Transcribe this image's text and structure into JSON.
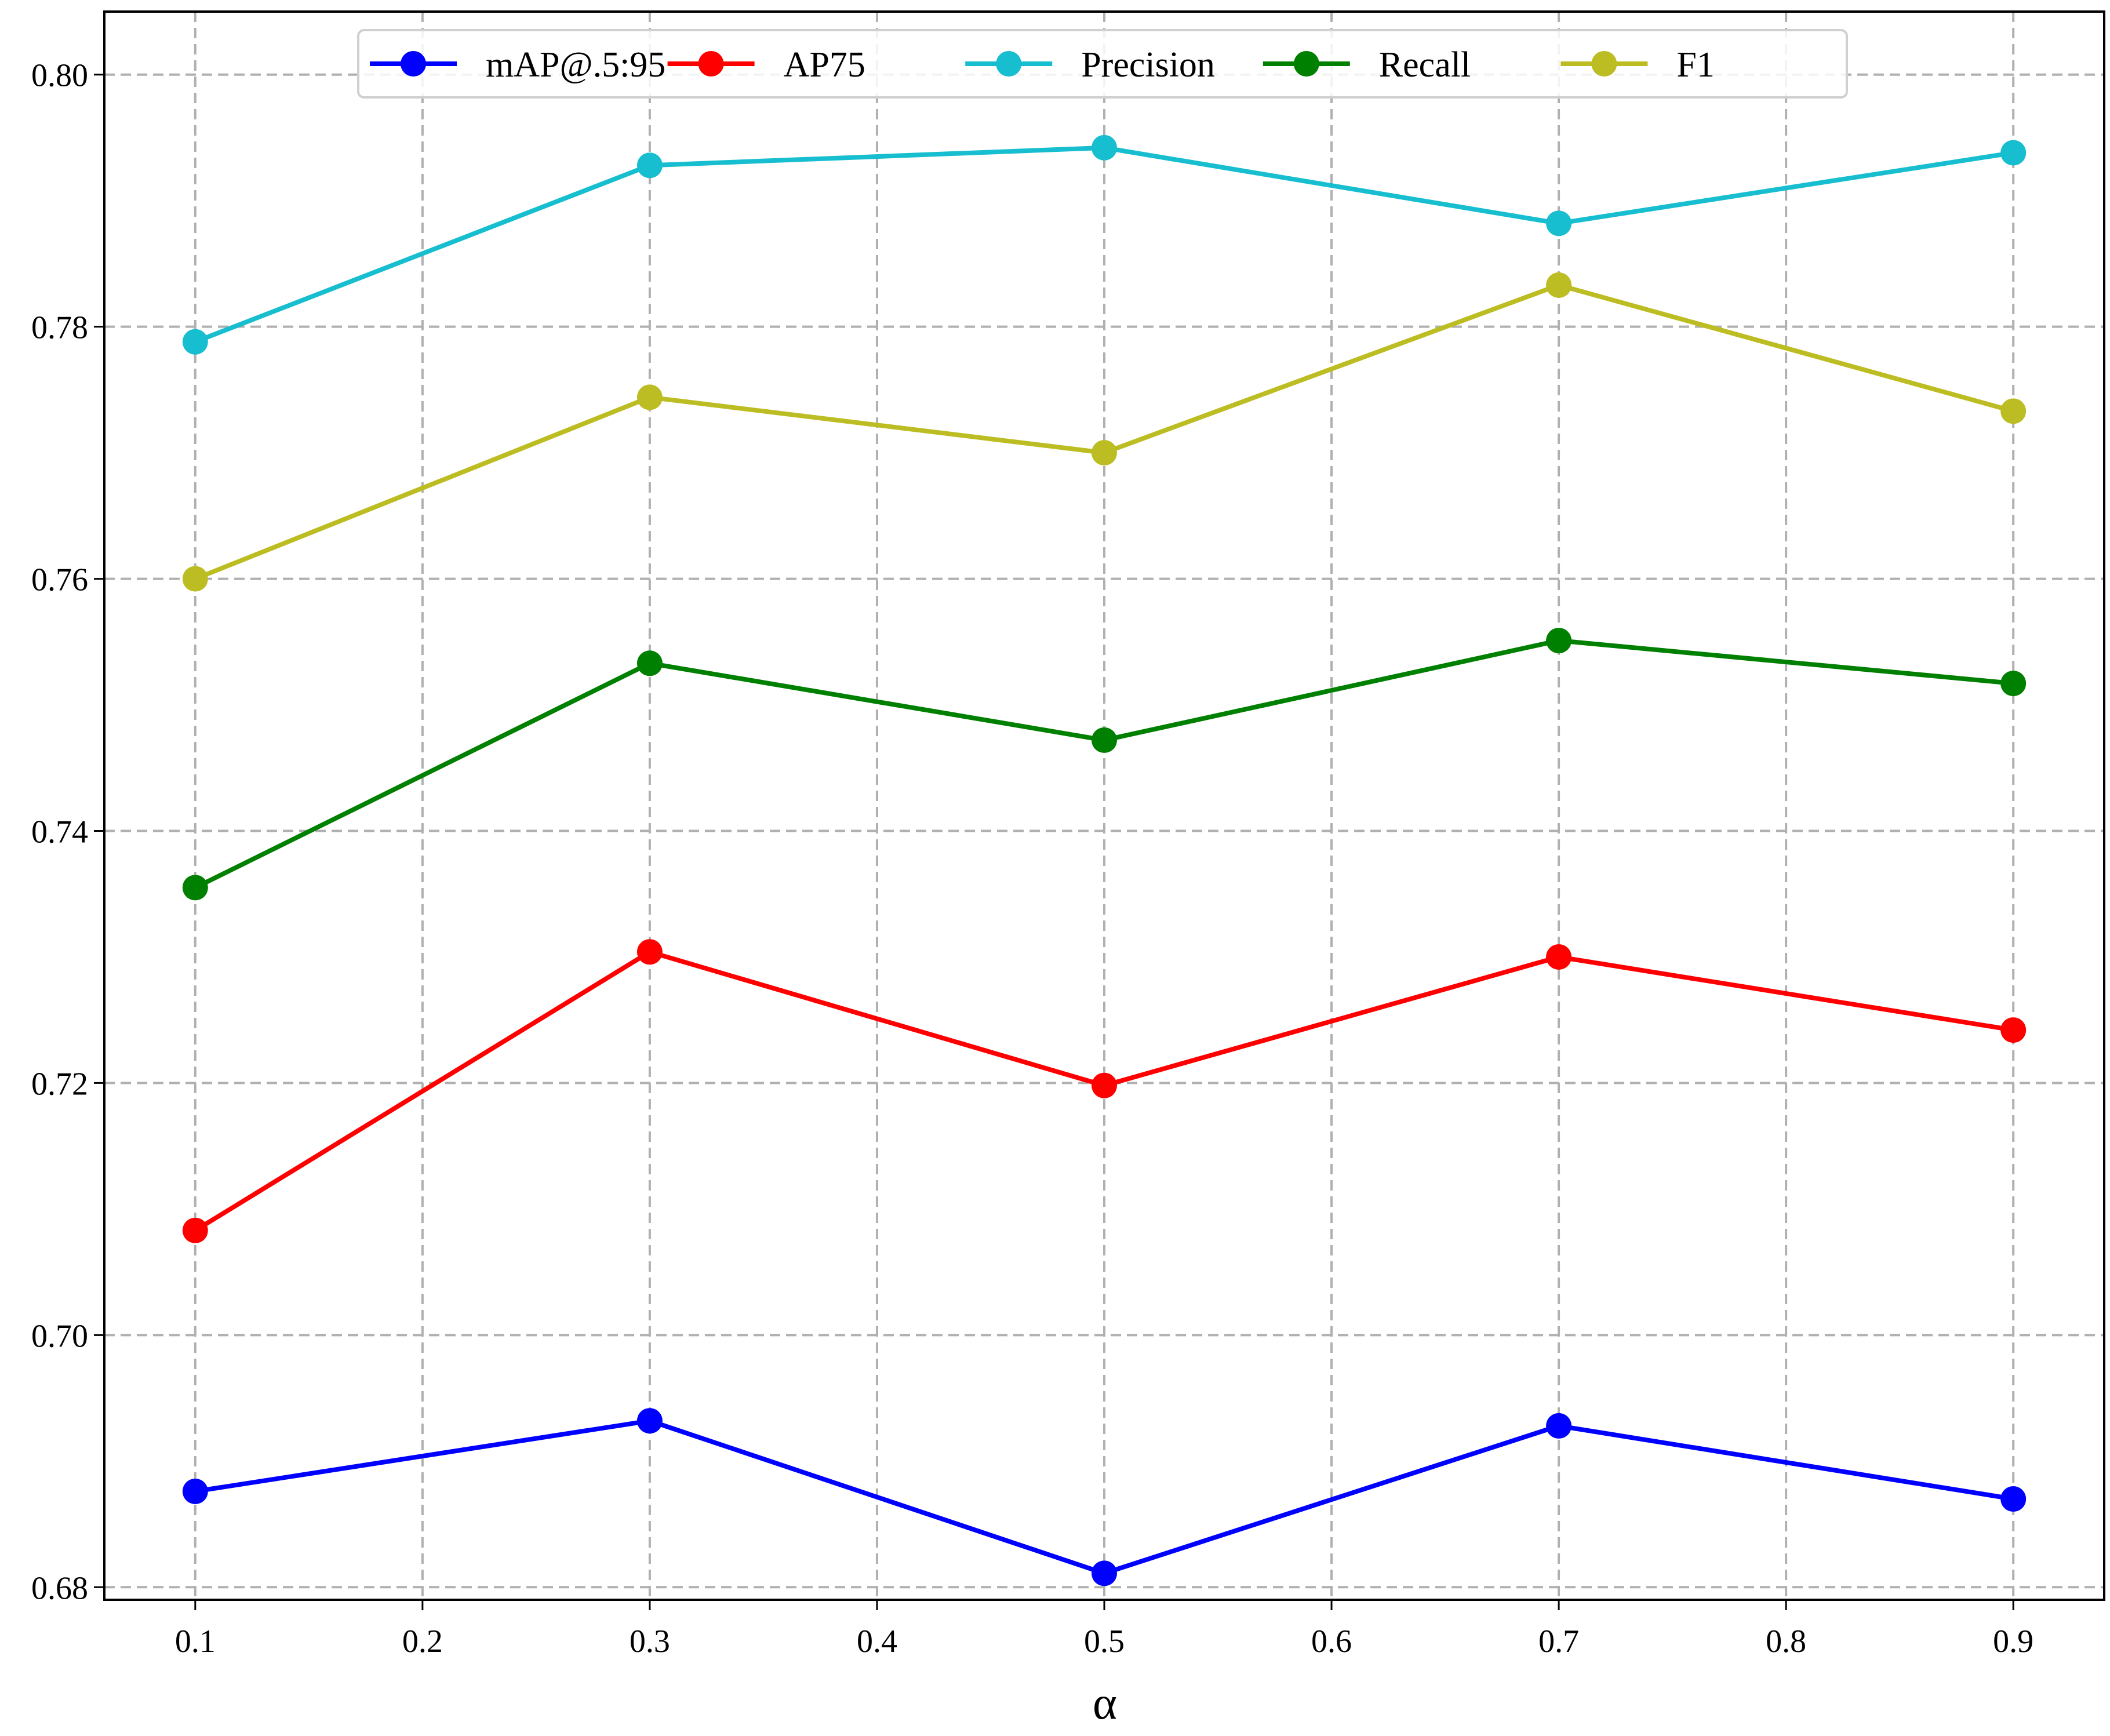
{
  "chart_data": {
    "type": "line",
    "title": "",
    "xlabel": "α",
    "ylabel": "",
    "x": [
      0.1,
      0.3,
      0.5,
      0.7,
      0.9
    ],
    "xticks": [
      "0.1",
      "0.2",
      "0.3",
      "0.4",
      "0.5",
      "0.6",
      "0.7",
      "0.8",
      "0.9"
    ],
    "yticks": [
      "0.68",
      "0.70",
      "0.72",
      "0.74",
      "0.76",
      "0.78",
      "0.80"
    ],
    "xlim": [
      0.06,
      0.94
    ],
    "ylim": [
      0.679,
      0.805
    ],
    "grid": true,
    "grid_style": "dashed",
    "legend_position": "top-center",
    "series": [
      {
        "name": "mAP@.5:95",
        "color": "#0000ff",
        "values": [
          0.6876,
          0.6932,
          0.6811,
          0.6928,
          0.687
        ]
      },
      {
        "name": "AP75",
        "color": "#ff0000",
        "values": [
          0.7083,
          0.7304,
          0.7198,
          0.73,
          0.7242
        ]
      },
      {
        "name": "Precision",
        "color": "#17becf",
        "values": [
          0.7788,
          0.7928,
          0.7942,
          0.7882,
          0.7938
        ]
      },
      {
        "name": "Recall",
        "color": "#008000",
        "values": [
          0.7355,
          0.7533,
          0.7472,
          0.7551,
          0.7517
        ]
      },
      {
        "name": "F1",
        "color": "#bcbd22",
        "values": [
          0.76,
          0.7744,
          0.77,
          0.7833,
          0.7733
        ]
      }
    ]
  }
}
